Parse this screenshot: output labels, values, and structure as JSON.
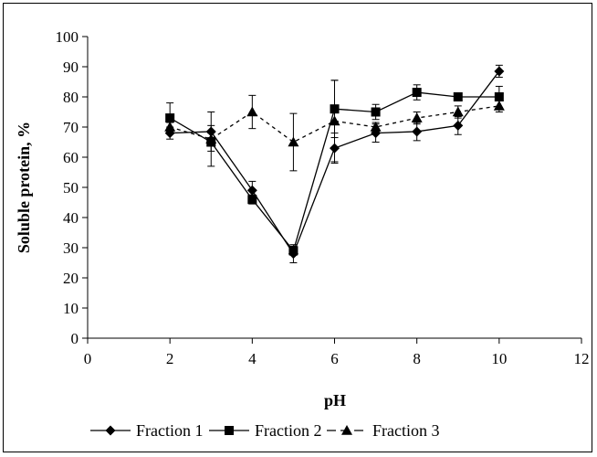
{
  "chart_data": {
    "type": "line",
    "title": "",
    "xlabel": "pH",
    "ylabel": "Soluble protein, %",
    "xlim": [
      0,
      12
    ],
    "ylim": [
      0,
      100
    ],
    "xticks": [
      0,
      2,
      4,
      6,
      8,
      10,
      12
    ],
    "yticks": [
      0,
      10,
      20,
      30,
      40,
      50,
      60,
      70,
      80,
      90,
      100
    ],
    "grid": false,
    "legend_position": "bottom",
    "x": [
      2,
      3,
      4,
      5,
      6,
      7,
      8,
      9,
      10
    ],
    "series": [
      {
        "name": "Fraction 1",
        "marker": "diamond",
        "line_style": "solid",
        "color": "#000000",
        "values": [
          68,
          68.5,
          49,
          28,
          63,
          68,
          68.5,
          70.5,
          88.5
        ],
        "errors": [
          2,
          2,
          3,
          3,
          5,
          3,
          3,
          3,
          2
        ]
      },
      {
        "name": "Fraction 2",
        "marker": "square",
        "line_style": "solid",
        "color": "#000000",
        "values": [
          73,
          65,
          46,
          29,
          76,
          75,
          81.5,
          80,
          80
        ],
        "errors": [
          5,
          3,
          1.5,
          1.5,
          9.5,
          2.5,
          2.5,
          1,
          3.5
        ]
      },
      {
        "name": "Fraction 3",
        "marker": "triangle",
        "line_style": "dashed",
        "color": "#000000",
        "values": [
          70,
          66,
          75,
          65,
          72,
          70,
          73,
          75,
          77
        ],
        "errors": [
          1.5,
          9,
          5.5,
          9.5,
          13.5,
          1.5,
          2,
          2,
          2
        ]
      }
    ]
  }
}
